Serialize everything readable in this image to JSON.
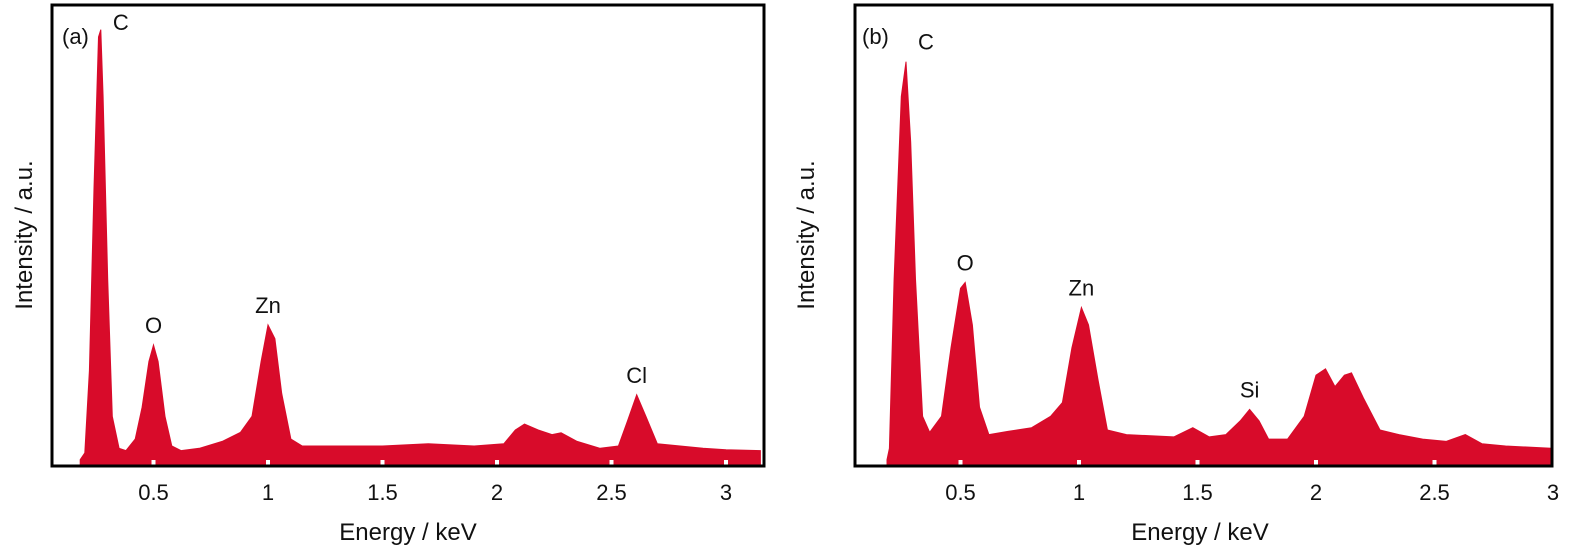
{
  "chart_data": [
    {
      "type": "area",
      "panel_label": "(a)",
      "xlabel": "Energy / keV",
      "ylabel": "Intensity / a.u.",
      "xlim": [
        0.05,
        3.15
      ],
      "ylim": [
        0,
        100
      ],
      "xticks": [
        0.5,
        1,
        1.5,
        2,
        2.5,
        3
      ],
      "xtick_labels": [
        "0.5",
        "1",
        "1.5",
        "2",
        "2.5",
        "3"
      ],
      "grid": false,
      "color": "#d80b2a",
      "annotations": [
        {
          "text": "C",
          "x": 0.27,
          "y": 94.6
        },
        {
          "text": "O",
          "x": 0.5,
          "y": 25.6
        },
        {
          "text": "Zn",
          "x": 1.0,
          "y": 30
        },
        {
          "text": "Cl",
          "x": 2.61,
          "y": 14.7
        }
      ],
      "x": [
        0.18,
        0.2,
        0.22,
        0.24,
        0.26,
        0.27,
        0.28,
        0.3,
        0.32,
        0.35,
        0.38,
        0.42,
        0.45,
        0.48,
        0.5,
        0.52,
        0.55,
        0.58,
        0.62,
        0.7,
        0.8,
        0.88,
        0.93,
        0.97,
        1.0,
        1.03,
        1.06,
        1.1,
        1.15,
        1.3,
        1.5,
        1.7,
        1.9,
        2.03,
        2.08,
        2.12,
        2.18,
        2.24,
        2.28,
        2.35,
        2.45,
        2.53,
        2.57,
        2.61,
        2.65,
        2.7,
        2.8,
        2.9,
        3.0,
        3.15
      ],
      "y": [
        0.5,
        2,
        20,
        60,
        93,
        94.6,
        80,
        40,
        10,
        3,
        2.5,
        5,
        12,
        22,
        25.6,
        22,
        10,
        3.5,
        2.5,
        3,
        4.5,
        6.5,
        10,
        22,
        30,
        27,
        15,
        5,
        3.5,
        3.5,
        3.5,
        4,
        3.5,
        4,
        7,
        8.3,
        7,
        6,
        6.4,
        4.5,
        3,
        3.5,
        9,
        14.7,
        10,
        4,
        3.5,
        3,
        2.7,
        2.5
      ]
    },
    {
      "type": "area",
      "panel_label": "(b)",
      "xlabel": "Energy / keV",
      "ylabel": "Intensity / a.u.",
      "xlim": [
        0.05,
        3.0
      ],
      "ylim": [
        0,
        100
      ],
      "xticks": [
        0.5,
        1,
        1.5,
        2,
        2.5,
        3
      ],
      "xtick_labels": [
        "0.5",
        "1",
        "1.5",
        "2",
        "2.5",
        "3"
      ],
      "grid": false,
      "color": "#d80b2a",
      "annotations": [
        {
          "text": "C",
          "x": 0.27,
          "y": 87.6
        },
        {
          "text": "O",
          "x": 0.52,
          "y": 39.3
        },
        {
          "text": "Zn",
          "x": 1.01,
          "y": 33.8
        },
        {
          "text": "Si",
          "x": 1.72,
          "y": 11.5
        }
      ],
      "x": [
        0.19,
        0.2,
        0.22,
        0.25,
        0.27,
        0.29,
        0.31,
        0.34,
        0.37,
        0.42,
        0.46,
        0.5,
        0.52,
        0.55,
        0.58,
        0.62,
        0.7,
        0.8,
        0.88,
        0.93,
        0.97,
        1.01,
        1.04,
        1.08,
        1.12,
        1.2,
        1.4,
        1.48,
        1.55,
        1.62,
        1.68,
        1.72,
        1.76,
        1.8,
        1.88,
        1.95,
        2.0,
        2.04,
        2.08,
        2.12,
        2.15,
        2.2,
        2.27,
        2.35,
        2.45,
        2.55,
        2.63,
        2.7,
        2.8,
        3.0
      ],
      "y": [
        0.5,
        3,
        40,
        80,
        87.6,
        70,
        40,
        10,
        6.5,
        10,
        25,
        38,
        39.3,
        30,
        12,
        6,
        6.7,
        7.5,
        10,
        13,
        25,
        33.8,
        30,
        18,
        7,
        6,
        5.5,
        7.5,
        5.5,
        6,
        9,
        11.5,
        9,
        5,
        5,
        10,
        19,
        20.4,
        16.5,
        19,
        19.5,
        14,
        7,
        6,
        5,
        4.5,
        6,
        4,
        3.5,
        3
      ]
    }
  ]
}
